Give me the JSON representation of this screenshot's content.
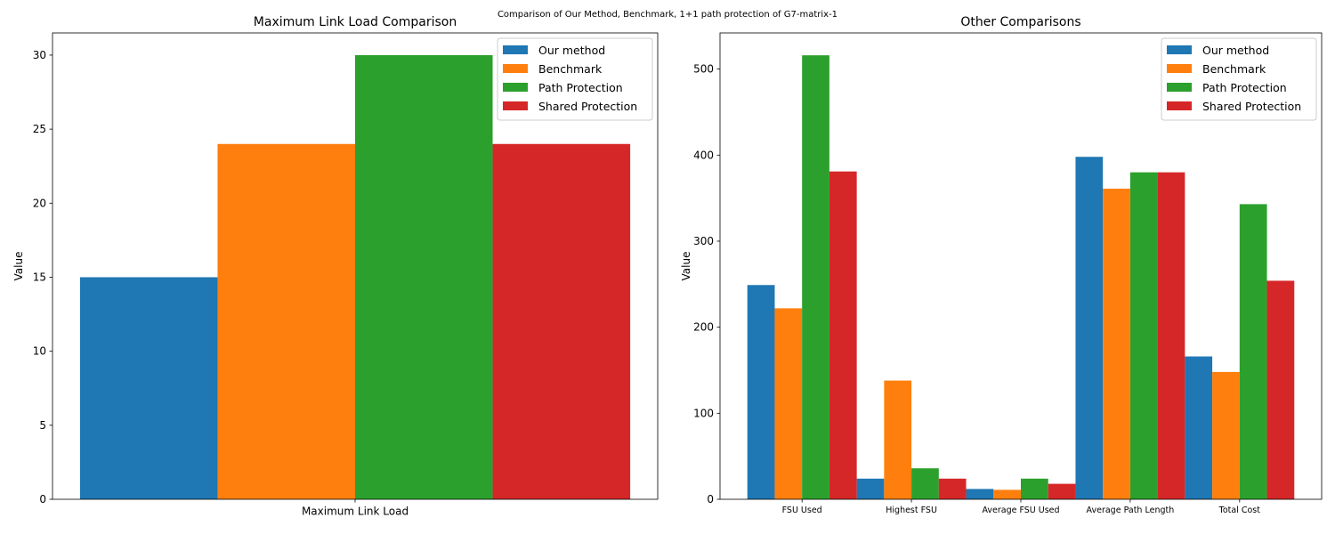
{
  "suptitle": "Comparison of Our Method, Benchmark, 1+1 path protection of G7-matrix-1",
  "colors": {
    "Our method": "#1f77b4",
    "Benchmark": "#ff7f0e",
    "Path Protection": "#2ca02c",
    "Shared Protection": "#d62728"
  },
  "chart_data": [
    {
      "type": "bar",
      "title": "Maximum Link Load Comparison",
      "xlabel": "",
      "ylabel": "Value",
      "categories": [
        "Maximum Link Load"
      ],
      "ylim": [
        0,
        31.5
      ],
      "yticks": [
        0,
        5,
        10,
        15,
        20,
        25,
        30
      ],
      "legend": "top-right",
      "series": [
        {
          "name": "Our method",
          "values": [
            15
          ]
        },
        {
          "name": "Benchmark",
          "values": [
            24
          ]
        },
        {
          "name": "Path Protection",
          "values": [
            30
          ]
        },
        {
          "name": "Shared Protection",
          "values": [
            24
          ]
        }
      ]
    },
    {
      "type": "bar",
      "title": "Other Comparisons",
      "xlabel": "",
      "ylabel": "Value",
      "categories": [
        "FSU Used",
        "Highest FSU",
        "Average FSU Used",
        "Average Path Length",
        "Total Cost"
      ],
      "ylim": [
        0,
        542
      ],
      "yticks": [
        0,
        100,
        200,
        300,
        400,
        500
      ],
      "legend": "top-right",
      "series": [
        {
          "name": "Our method",
          "values": [
            249,
            24,
            12,
            398,
            166
          ]
        },
        {
          "name": "Benchmark",
          "values": [
            222,
            138,
            11,
            361,
            148
          ]
        },
        {
          "name": "Path Protection",
          "values": [
            516,
            36,
            24,
            380,
            343
          ]
        },
        {
          "name": "Shared Protection",
          "values": [
            381,
            24,
            18,
            380,
            254
          ]
        }
      ]
    }
  ]
}
